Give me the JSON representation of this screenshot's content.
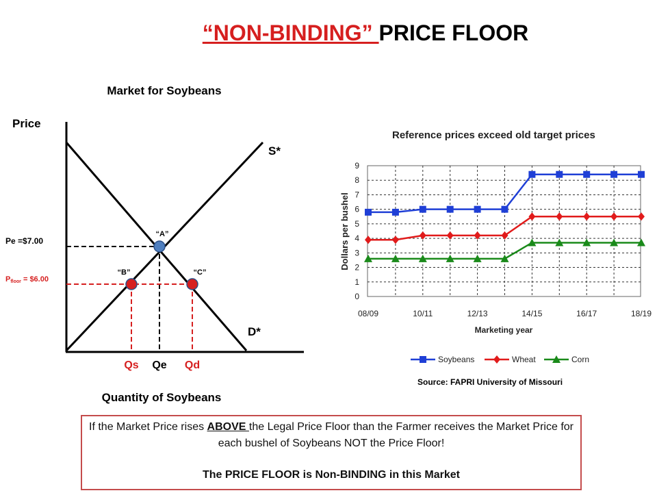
{
  "title": {
    "quoted": "“NON-BINDING” ",
    "rest": "PRICE FLOOR"
  },
  "colors": {
    "accent_red": "#d61f1f",
    "point_blue": "#4f7fbf",
    "soybeans": "#1f3fd6",
    "wheat": "#e11b1b",
    "corn": "#1a8a1a"
  },
  "market": {
    "heading": "Market for Soybeans",
    "y_axis_label": "Price",
    "x_axis_label": "Quantity of Soybeans",
    "supply_label": "S*",
    "demand_label": "D*",
    "pe_label": "Pe =$7.00",
    "pfloor_prefix": "P",
    "pfloor_sub": "floor",
    "pfloor_value": " = $6.00",
    "point_a": "“A”",
    "point_b": "“B”",
    "point_c": "“C”",
    "qs": "Qs",
    "qe": "Qe",
    "qd": "Qd"
  },
  "chart_data": {
    "type": "line",
    "title": "Reference prices exceed old target prices",
    "xlabel": "Marketing year",
    "ylabel": "Dollars per bushel",
    "ylim": [
      0,
      9
    ],
    "grid": true,
    "legend_position": "bottom",
    "x_ticks": [
      "08/09",
      "10/11",
      "12/13",
      "14/15",
      "16/17",
      "18/19"
    ],
    "x_positions": [
      0,
      1,
      2,
      3,
      4,
      5,
      6,
      7,
      8,
      9,
      10
    ],
    "series": [
      {
        "name": "Soybeans",
        "marker": "square",
        "values": [
          5.8,
          5.8,
          6.0,
          6.0,
          6.0,
          6.0,
          8.4,
          8.4,
          8.4,
          8.4,
          8.4
        ]
      },
      {
        "name": "Wheat",
        "marker": "diamond",
        "values": [
          3.9,
          3.9,
          4.2,
          4.2,
          4.2,
          4.2,
          5.5,
          5.5,
          5.5,
          5.5,
          5.5
        ]
      },
      {
        "name": "Corn",
        "marker": "triangle",
        "values": [
          2.6,
          2.6,
          2.6,
          2.6,
          2.6,
          2.6,
          3.7,
          3.7,
          3.7,
          3.7,
          3.7
        ]
      }
    ]
  },
  "source": "Source: FAPRI University of Missouri",
  "note": {
    "line1_pre": "If the Market Price rises ",
    "line1_emph": "ABOVE ",
    "line1_post": "the Legal Price Floor than the Farmer receives the Market Price for each bushel of Soybeans NOT the Price Floor!",
    "line2": "The PRICE FLOOR is Non-BINDING in this Market"
  }
}
